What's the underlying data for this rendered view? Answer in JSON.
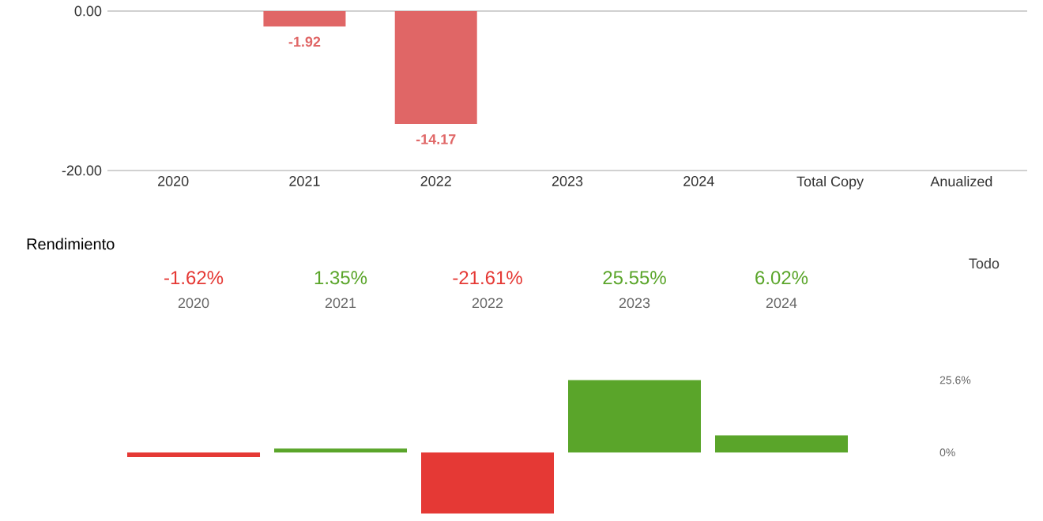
{
  "chart_data": [
    {
      "type": "bar",
      "categories": [
        "2020",
        "2021",
        "2022",
        "2023",
        "2024",
        "Total Copy",
        "Anualized"
      ],
      "values": [
        null,
        -1.92,
        -14.17,
        null,
        null,
        null,
        null
      ],
      "colors": [
        "#6aa84f",
        "#e06666",
        "#e06666",
        "#6aa84f",
        "#6aa84f",
        "#6aa84f",
        "#6aa84f"
      ],
      "value_labels": [
        null,
        "-1.92",
        "-14.17",
        null,
        null,
        null,
        null
      ],
      "ylim": [
        -20,
        0
      ],
      "yticks": [
        {
          "value": 0,
          "label": "0.00"
        },
        {
          "value": -20,
          "label": "-20.00"
        }
      ]
    },
    {
      "type": "bar",
      "title": "Rendimiento",
      "annotations": [
        "Todo"
      ],
      "categories": [
        "2020",
        "2021",
        "2022",
        "2023",
        "2024"
      ],
      "values": [
        -1.62,
        1.35,
        -21.61,
        25.55,
        6.02
      ],
      "colors": [
        "#e53935",
        "#5aa52a",
        "#e53935",
        "#5aa52a",
        "#5aa52a"
      ],
      "value_labels": [
        "-1.62%",
        "1.35%",
        "-21.61%",
        "25.55%",
        "6.02%"
      ],
      "ylim": [
        -22,
        26
      ],
      "yticks": [
        {
          "value": 0,
          "label": "0%"
        },
        {
          "value": 25.6,
          "label": "25.6%"
        }
      ]
    }
  ]
}
